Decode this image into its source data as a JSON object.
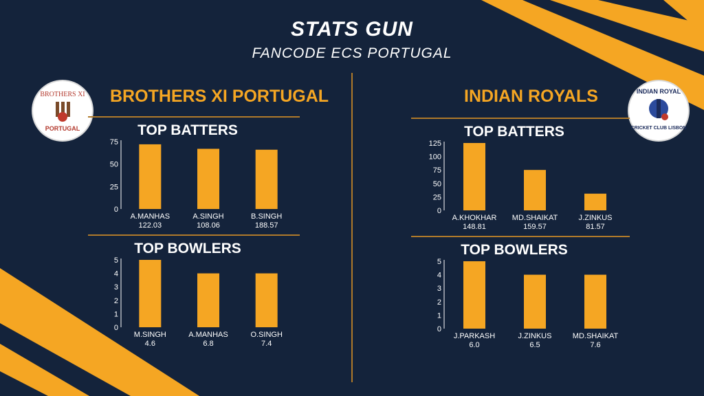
{
  "header": {
    "title": "STATS GUN",
    "subtitle": "FANCODE ECS PORTUGAL"
  },
  "teams": [
    {
      "name": "BROTHERS XI PORTUGAL",
      "logo": {
        "text_top": "BROTHERS XI",
        "text_bottom": "PORTUGAL"
      }
    },
    {
      "name": "INDIAN ROYALS",
      "logo": {
        "text_top": "INDIAN ROYAL",
        "text_bottom": "CRICKET CLUB LISBON"
      }
    }
  ],
  "colors": {
    "accent": "#f5a623",
    "bar": "#f5a623",
    "background": "#14233b",
    "text": "#ffffff"
  },
  "chart_data": [
    {
      "type": "bar",
      "title": "TOP BATTERS",
      "categories": [
        "A.MANHAS",
        "A.SINGH",
        "B.SINGH"
      ],
      "sublabels": [
        "122.03",
        "108.06",
        "188.57"
      ],
      "values": [
        72,
        67,
        66
      ],
      "ylim": [
        0,
        75
      ],
      "yticks": [
        0,
        25,
        50,
        75
      ]
    },
    {
      "type": "bar",
      "title": "TOP BOWLERS",
      "categories": [
        "M.SINGH",
        "A.MANHAS",
        "O.SINGH"
      ],
      "sublabels": [
        "4.6",
        "6.8",
        "7.4"
      ],
      "values": [
        5,
        4,
        4
      ],
      "ylim": [
        0,
        5
      ],
      "yticks": [
        0,
        1,
        2,
        3,
        4,
        5
      ]
    },
    {
      "type": "bar",
      "title": "TOP BATTERS",
      "categories": [
        "A.KHOKHAR",
        "MD.SHAIKAT",
        "J.ZINKUS"
      ],
      "sublabels": [
        "148.81",
        "159.57",
        "81.57"
      ],
      "values": [
        125,
        75,
        31
      ],
      "ylim": [
        0,
        125
      ],
      "yticks": [
        0,
        25,
        50,
        75,
        100,
        125
      ]
    },
    {
      "type": "bar",
      "title": "TOP BOWLERS",
      "categories": [
        "J.PARKASH",
        "J.ZINKUS",
        "MD.SHAIKAT"
      ],
      "sublabels": [
        "6.0",
        "6.5",
        "7.6"
      ],
      "values": [
        5,
        4,
        4
      ],
      "ylim": [
        0,
        5
      ],
      "yticks": [
        0,
        1,
        2,
        3,
        4,
        5
      ]
    }
  ]
}
